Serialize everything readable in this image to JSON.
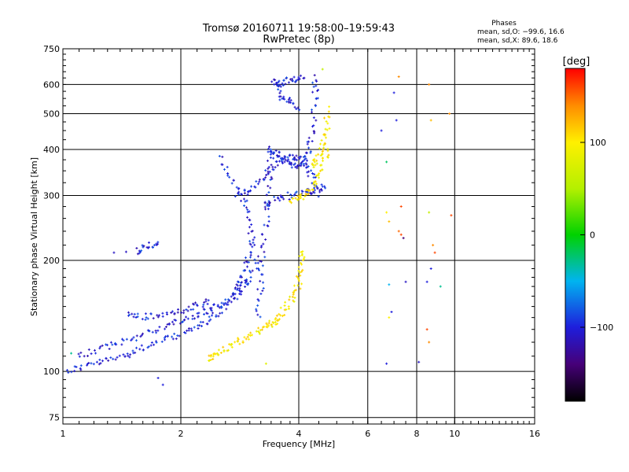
{
  "chart_data": {
    "type": "scatter",
    "title": "Tromsø 20160711 19:58:00–19:59:43",
    "subtitle": "RwPretec (8p)",
    "xlabel": "Frequency [MHz]",
    "ylabel": "Stationary phase Virtual Height [km]",
    "x_scale": "log",
    "y_scale": "log",
    "xlim": [
      1,
      16
    ],
    "ylim": [
      72,
      750
    ],
    "x_ticks": [
      1,
      2,
      4,
      6,
      8,
      10,
      16
    ],
    "x_tick_labels": [
      "1",
      "2",
      "4",
      "6",
      "8",
      "10",
      "16"
    ],
    "y_ticks": [
      75,
      100,
      200,
      300,
      400,
      500,
      600,
      750
    ],
    "y_tick_labels": [
      "75",
      "100",
      "200",
      "300",
      "400",
      "500",
      "600",
      "750"
    ],
    "grid": true,
    "stats": {
      "heading": "Phases",
      "line1": "mean, sd,O: −99.6, 16.6",
      "line2": "mean, sd,X:  89.6, 18.6"
    },
    "colorbar": {
      "label": "[deg]",
      "min": -180,
      "max": 180,
      "ticks": [
        -100,
        0,
        100
      ],
      "tick_labels": [
        "−100",
        "0",
        "100"
      ]
    },
    "series": [
      {
        "polarity": "O",
        "phase_deg": -100,
        "segments": [
          [
            [
              1.02,
              100
            ],
            [
              1.15,
              104
            ],
            [
              1.3,
              107
            ],
            [
              1.45,
              111
            ],
            [
              1.6,
              116
            ],
            [
              1.8,
              121
            ],
            [
              2.0,
              126
            ],
            [
              2.2,
              132
            ],
            [
              2.4,
              140
            ],
            [
              2.6,
              150
            ],
            [
              2.8,
              163
            ],
            [
              3.0,
              180
            ],
            [
              3.2,
              205
            ]
          ],
          [
            [
              1.1,
              110
            ],
            [
              1.25,
              115
            ],
            [
              1.4,
              120
            ],
            [
              1.6,
              126
            ],
            [
              1.8,
              132
            ],
            [
              2.0,
              137
            ],
            [
              2.2,
              142
            ],
            [
              2.4,
              148
            ],
            [
              2.6,
              155
            ],
            [
              2.8,
              165
            ],
            [
              3.0,
              180
            ]
          ],
          [
            [
              1.45,
              143
            ],
            [
              1.6,
              140
            ],
            [
              1.8,
              142
            ],
            [
              2.0,
              146
            ],
            [
              2.2,
              150
            ],
            [
              2.4,
              156
            ]
          ],
          [
            [
              3.15,
              140
            ],
            [
              3.2,
              170
            ],
            [
              3.25,
              210
            ],
            [
              3.3,
              260
            ],
            [
              3.35,
              320
            ],
            [
              3.4,
              400
            ]
          ],
          [
            [
              2.8,
              300
            ],
            [
              3.0,
              310
            ],
            [
              3.2,
              330
            ],
            [
              3.4,
              355
            ],
            [
              3.6,
              375
            ],
            [
              3.8,
              385
            ],
            [
              4.0,
              380
            ],
            [
              4.2,
              360
            ],
            [
              4.35,
              330
            ],
            [
              4.5,
              300
            ]
          ],
          [
            [
              3.3,
              280
            ],
            [
              3.5,
              292
            ],
            [
              3.8,
              300
            ],
            [
              4.1,
              305
            ],
            [
              4.4,
              310
            ],
            [
              4.7,
              318
            ]
          ],
          [
            [
              3.3,
              400
            ],
            [
              3.5,
              395
            ],
            [
              3.7,
              375
            ],
            [
              3.9,
              360
            ],
            [
              4.1,
              365
            ],
            [
              4.25,
              395
            ],
            [
              4.35,
              460
            ],
            [
              4.4,
              560
            ],
            [
              4.4,
              640
            ]
          ],
          [
            [
              3.5,
              600
            ],
            [
              3.7,
              610
            ],
            [
              3.9,
              620
            ],
            [
              4.1,
              630
            ]
          ],
          [
            [
              3.4,
              620
            ],
            [
              3.6,
              560
            ],
            [
              3.8,
              540
            ],
            [
              4.0,
              520
            ]
          ],
          [
            [
              2.5,
              380
            ],
            [
              2.7,
              330
            ],
            [
              2.9,
              290
            ],
            [
              3.0,
              250
            ],
            [
              3.05,
              215
            ]
          ],
          [
            [
              1.55,
              212
            ],
            [
              1.65,
              218
            ],
            [
              1.75,
              224
            ]
          ],
          [
            [
              2.7,
              160
            ],
            [
              2.85,
              175
            ],
            [
              2.95,
              200
            ],
            [
              3.05,
              225
            ]
          ]
        ]
      },
      {
        "polarity": "X",
        "phase_deg": 100,
        "segments": [
          [
            [
              3.3,
              130
            ],
            [
              3.5,
              138
            ],
            [
              3.7,
              148
            ],
            [
              3.9,
              160
            ],
            [
              4.0,
              175
            ],
            [
              4.05,
              195
            ],
            [
              4.1,
              215
            ]
          ],
          [
            [
              2.6,
              115
            ],
            [
              2.8,
              120
            ],
            [
              3.0,
              125
            ],
            [
              3.3,
              133
            ],
            [
              3.6,
              140
            ]
          ],
          [
            [
              3.8,
              290
            ],
            [
              4.0,
              295
            ],
            [
              4.2,
              305
            ],
            [
              4.4,
              330
            ],
            [
              4.6,
              360
            ],
            [
              4.75,
              405
            ]
          ],
          [
            [
              4.3,
              360
            ],
            [
              4.45,
              380
            ],
            [
              4.6,
              410
            ],
            [
              4.7,
              450
            ],
            [
              4.75,
              520
            ]
          ],
          [
            [
              2.35,
              108
            ],
            [
              2.45,
              111
            ],
            [
              2.6,
              115
            ]
          ]
        ]
      },
      {
        "polarity": "sparse",
        "points": [
          {
            "x": 1.35,
            "y": 210,
            "phase": -110
          },
          {
            "x": 1.45,
            "y": 211,
            "phase": -110
          },
          {
            "x": 1.75,
            "y": 96,
            "phase": -100
          },
          {
            "x": 1.8,
            "y": 92,
            "phase": -100
          },
          {
            "x": 1.05,
            "y": 112,
            "phase": -30
          },
          {
            "x": 6.5,
            "y": 450,
            "phase": -100
          },
          {
            "x": 6.7,
            "y": 370,
            "phase": -20
          },
          {
            "x": 7.0,
            "y": 570,
            "phase": -100
          },
          {
            "x": 7.1,
            "y": 480,
            "phase": -100
          },
          {
            "x": 7.2,
            "y": 630,
            "phase": 140
          },
          {
            "x": 7.3,
            "y": 280,
            "phase": 160
          },
          {
            "x": 8.6,
            "y": 600,
            "phase": 140
          },
          {
            "x": 8.7,
            "y": 480,
            "phase": 120
          },
          {
            "x": 9.7,
            "y": 500,
            "phase": 140
          },
          {
            "x": 6.7,
            "y": 270,
            "phase": 100
          },
          {
            "x": 6.8,
            "y": 255,
            "phase": 120
          },
          {
            "x": 7.2,
            "y": 240,
            "phase": 150
          },
          {
            "x": 7.3,
            "y": 235,
            "phase": 160
          },
          {
            "x": 7.4,
            "y": 230,
            "phase": -140
          },
          {
            "x": 8.6,
            "y": 270,
            "phase": 60
          },
          {
            "x": 8.8,
            "y": 220,
            "phase": 140
          },
          {
            "x": 8.9,
            "y": 210,
            "phase": 160
          },
          {
            "x": 9.8,
            "y": 265,
            "phase": 160
          },
          {
            "x": 8.7,
            "y": 190,
            "phase": -100
          },
          {
            "x": 7.5,
            "y": 175,
            "phase": -110
          },
          {
            "x": 6.8,
            "y": 172,
            "phase": -50
          },
          {
            "x": 6.9,
            "y": 145,
            "phase": -100
          },
          {
            "x": 6.8,
            "y": 140,
            "phase": 100
          },
          {
            "x": 6.7,
            "y": 105,
            "phase": -100
          },
          {
            "x": 8.1,
            "y": 106,
            "phase": -110
          },
          {
            "x": 8.5,
            "y": 130,
            "phase": 160
          },
          {
            "x": 8.6,
            "y": 120,
            "phase": 140
          },
          {
            "x": 8.5,
            "y": 175,
            "phase": -100
          },
          {
            "x": 9.2,
            "y": 170,
            "phase": -30
          },
          {
            "x": 3.3,
            "y": 105,
            "phase": 80
          },
          {
            "x": 4.6,
            "y": 660,
            "phase": 60
          }
        ]
      }
    ]
  }
}
